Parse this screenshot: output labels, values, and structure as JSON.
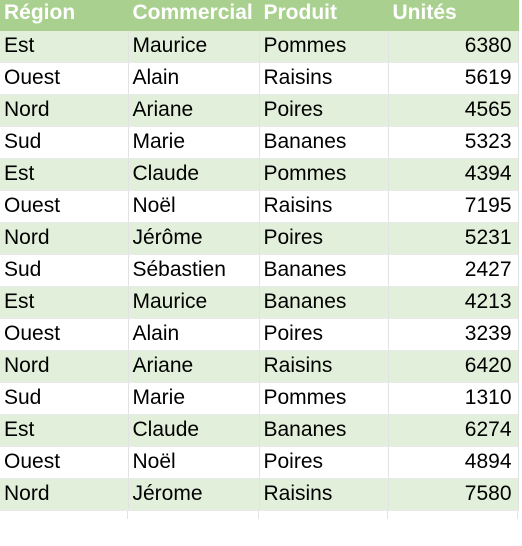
{
  "sheet": {
    "headers": {
      "region": "Région",
      "commercial": "Commercial",
      "produit": "Produit",
      "unites": "Unités"
    },
    "rows": [
      {
        "region": "Est",
        "commercial": "Maurice",
        "produit": "Pommes",
        "unites": "6380"
      },
      {
        "region": "Ouest",
        "commercial": "Alain",
        "produit": "Raisins",
        "unites": "5619"
      },
      {
        "region": "Nord",
        "commercial": "Ariane",
        "produit": "Poires",
        "unites": "4565"
      },
      {
        "region": "Sud",
        "commercial": "Marie",
        "produit": "Bananes",
        "unites": "5323"
      },
      {
        "region": "Est",
        "commercial": "Claude",
        "produit": "Pommes",
        "unites": "4394"
      },
      {
        "region": "Ouest",
        "commercial": "Noël",
        "produit": "Raisins",
        "unites": "7195"
      },
      {
        "region": "Nord",
        "commercial": "Jérôme",
        "produit": "Poires",
        "unites": "5231"
      },
      {
        "region": "Sud",
        "commercial": "Sébastien",
        "produit": "Bananes",
        "unites": "2427"
      },
      {
        "region": "Est",
        "commercial": "Maurice",
        "produit": "Bananes",
        "unites": "4213"
      },
      {
        "region": "Ouest",
        "commercial": "Alain",
        "produit": "Poires",
        "unites": "3239"
      },
      {
        "region": "Nord",
        "commercial": "Ariane",
        "produit": "Raisins",
        "unites": "6420"
      },
      {
        "region": "Sud",
        "commercial": "Marie",
        "produit": "Pommes",
        "unites": "1310"
      },
      {
        "region": "Est",
        "commercial": "Claude",
        "produit": "Bananes",
        "unites": "6274"
      },
      {
        "region": "Ouest",
        "commercial": "Noël",
        "produit": "Poires",
        "unites": "4894"
      },
      {
        "region": "Nord",
        "commercial": "Jérome",
        "produit": "Raisins",
        "unites": "7580"
      }
    ]
  },
  "colors": {
    "header_fill": "#a9d08e",
    "band_fill": "#e2efda",
    "header_text": "#ffffff"
  }
}
